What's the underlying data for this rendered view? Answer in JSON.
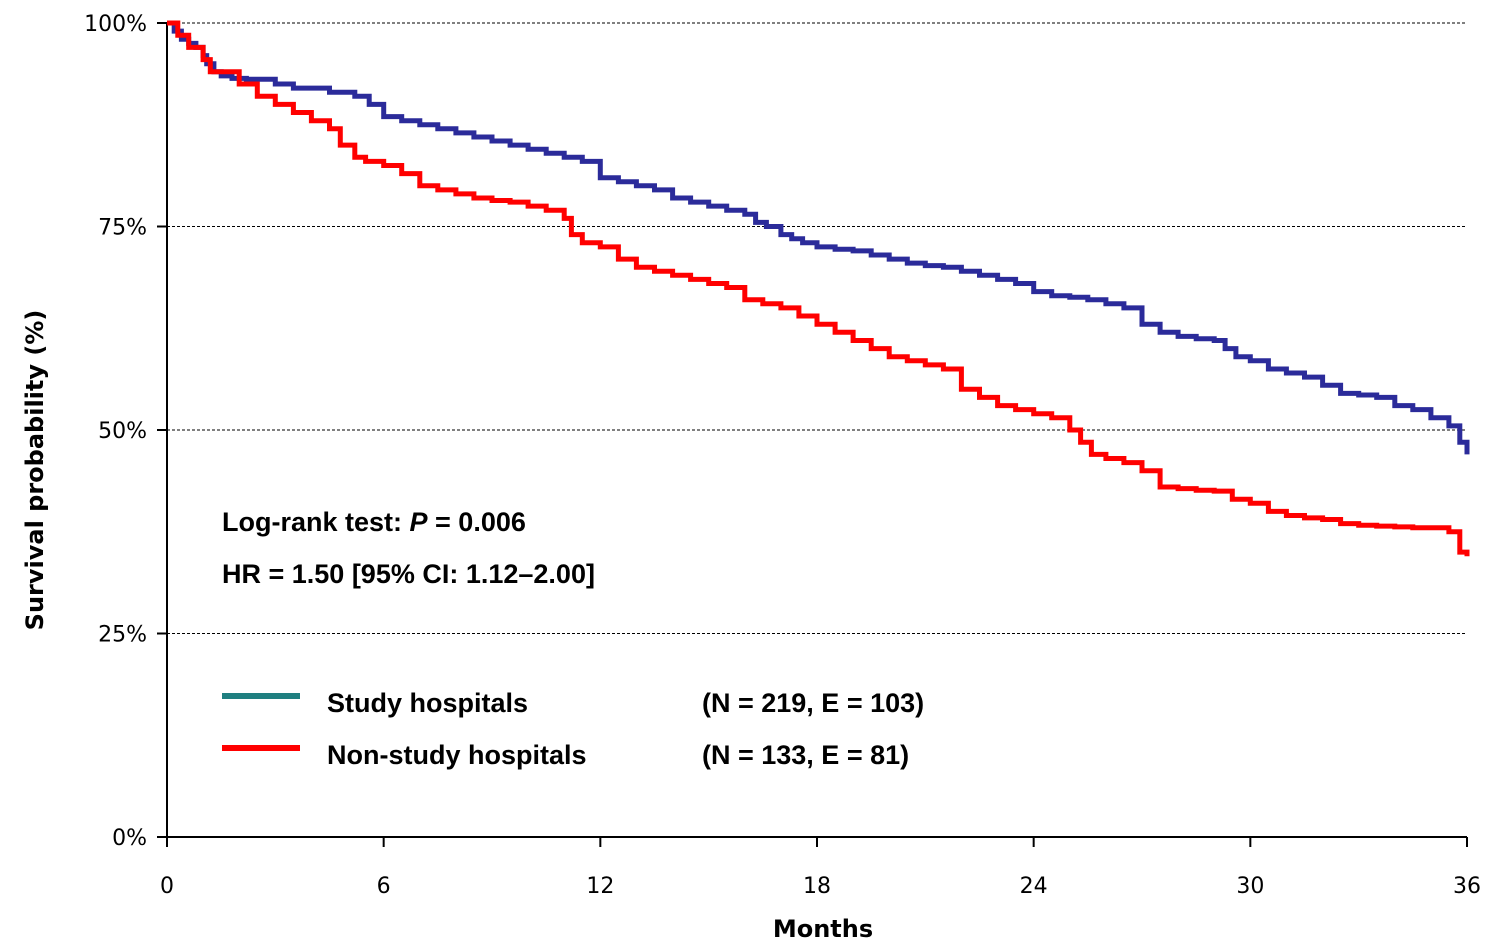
{
  "chart_data": {
    "type": "line",
    "xlabel": "Months",
    "ylabel": "Survival probability (%)",
    "xlim": [
      0,
      36
    ],
    "ylim": [
      0,
      100
    ],
    "x_ticks": [
      0,
      6,
      12,
      18,
      24,
      30,
      36
    ],
    "y_ticks": [
      0,
      25,
      50,
      75,
      100
    ],
    "y_tick_labels": [
      "0%",
      "25%",
      "50%",
      "75%",
      "100%"
    ],
    "grid": "horizontal dashed",
    "annotations": {
      "logrank_prefix": "Log-rank test: ",
      "logrank_p_symbol": "P",
      "logrank_value": " = 0.006",
      "hr_text": "HR = 1.50 [95% CI: 1.12–2.00]"
    },
    "legend_placement": "lower-left",
    "series": [
      {
        "name": "Study hospitals",
        "stats": "(N = 219, E = 103)",
        "line_color": "#2b2b9a",
        "legend_color": "#1f7f80",
        "x": [
          0,
          0.2,
          0.4,
          0.6,
          0.8,
          1.0,
          1.1,
          1.3,
          1.5,
          1.8,
          2.2,
          3.0,
          3.5,
          4.5,
          5.2,
          5.6,
          6.0,
          6.5,
          7.0,
          7.5,
          8.0,
          8.5,
          9.0,
          9.5,
          10.0,
          10.5,
          11.0,
          11.5,
          12.0,
          12.5,
          13.0,
          13.5,
          14.0,
          14.5,
          15.0,
          15.5,
          16.0,
          16.3,
          16.6,
          17.0,
          17.3,
          17.6,
          18.0,
          18.5,
          19.0,
          19.5,
          20.0,
          20.5,
          21.0,
          21.5,
          22.0,
          22.5,
          23.0,
          23.5,
          24.0,
          24.5,
          25.0,
          25.5,
          26.0,
          26.5,
          27.0,
          27.5,
          28.0,
          28.5,
          29.0,
          29.3,
          29.6,
          30.0,
          30.5,
          31.0,
          31.5,
          32.0,
          32.5,
          33.0,
          33.5,
          34.0,
          34.5,
          35.0,
          35.5,
          35.8,
          36.0
        ],
        "y": [
          100,
          99,
          98,
          97.5,
          97,
          96,
          95,
          94,
          93.5,
          93.2,
          93.1,
          92.5,
          92,
          91.5,
          91,
          90,
          88.5,
          88,
          87.5,
          87,
          86.5,
          86,
          85.5,
          85,
          84.5,
          84,
          83.5,
          83,
          81,
          80.5,
          80,
          79.5,
          78.5,
          78,
          77.5,
          77,
          76.5,
          75.5,
          75,
          74,
          73.5,
          73,
          72.5,
          72.2,
          72,
          71.5,
          71,
          70.5,
          70.2,
          70,
          69.5,
          69,
          68.5,
          68,
          67,
          66.5,
          66.3,
          66,
          65.5,
          65,
          63,
          62,
          61.5,
          61.2,
          61,
          60,
          59,
          58.5,
          57.5,
          57,
          56.5,
          55.5,
          54.5,
          54.3,
          54,
          53,
          52.5,
          51.5,
          50.5,
          48.5,
          47
        ]
      },
      {
        "name": "Non-study hospitals",
        "stats": "(N = 133, E = 81)",
        "line_color": "#ff0000",
        "legend_color": "#ff0000",
        "x": [
          0,
          0.3,
          0.6,
          1.0,
          1.2,
          1.5,
          2.0,
          2.5,
          3.0,
          3.5,
          4.0,
          4.5,
          4.8,
          5.2,
          5.5,
          6.0,
          6.5,
          7.0,
          7.5,
          8.0,
          8.5,
          9.0,
          9.5,
          10.0,
          10.5,
          11.0,
          11.2,
          11.5,
          12.0,
          12.5,
          13.0,
          13.5,
          14.0,
          14.5,
          15.0,
          15.5,
          16.0,
          16.5,
          17.0,
          17.5,
          18.0,
          18.5,
          19.0,
          19.5,
          20.0,
          20.5,
          21.0,
          21.5,
          22.0,
          22.5,
          23.0,
          23.5,
          24.0,
          24.5,
          25.0,
          25.3,
          25.6,
          26.0,
          26.5,
          27.0,
          27.5,
          28.0,
          28.5,
          29.0,
          29.5,
          30.0,
          30.5,
          31.0,
          31.5,
          32.0,
          32.5,
          33.0,
          33.5,
          34.0,
          34.5,
          35.0,
          35.5,
          35.8,
          36.0
        ],
        "y": [
          100,
          98.5,
          97,
          95.5,
          94,
          94,
          92.5,
          91,
          90,
          89,
          88,
          87,
          85,
          83.5,
          83,
          82.5,
          81.5,
          80,
          79.5,
          79,
          78.5,
          78.2,
          78,
          77.5,
          77,
          76,
          74,
          73,
          72.5,
          71,
          70,
          69.5,
          69,
          68.5,
          68,
          67.5,
          66,
          65.5,
          65,
          64,
          63,
          62,
          61,
          60,
          59,
          58.5,
          58,
          57.5,
          55,
          54,
          53,
          52.5,
          52,
          51.5,
          50,
          48.5,
          47,
          46.5,
          46,
          45,
          43,
          42.8,
          42.6,
          42.5,
          41.5,
          41,
          40,
          39.5,
          39.2,
          39,
          38.5,
          38.3,
          38.2,
          38.1,
          38,
          38,
          37.5,
          35,
          34.5
        ]
      }
    ]
  }
}
